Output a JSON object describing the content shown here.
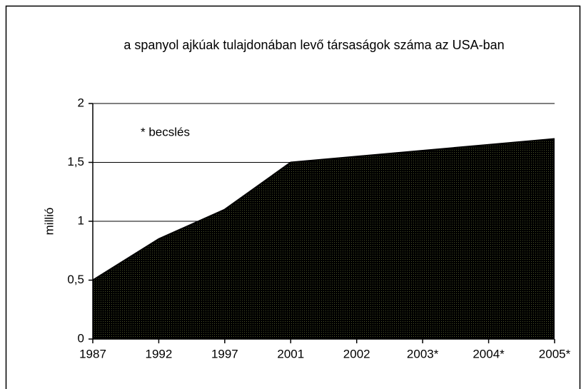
{
  "chart_data": {
    "type": "area",
    "title": "a spanyol ajkúak tulajdonában levő társaságok száma az USA-ban",
    "y_label": "millió",
    "annotation": "* becslés",
    "categories": [
      "1987",
      "1992",
      "1997",
      "2001",
      "2002",
      "2003*",
      "2004*",
      "2005*"
    ],
    "values": [
      0.5,
      0.85,
      1.1,
      1.5,
      1.55,
      1.6,
      1.65,
      1.7
    ],
    "color": "#d2e294",
    "ylim": [
      0,
      2
    ],
    "yticks": [
      0,
      {
        "value": 0.5,
        "label": "0,5"
      },
      1,
      {
        "value": 1.5,
        "label": "1,5"
      },
      2
    ],
    "grid": true
  }
}
